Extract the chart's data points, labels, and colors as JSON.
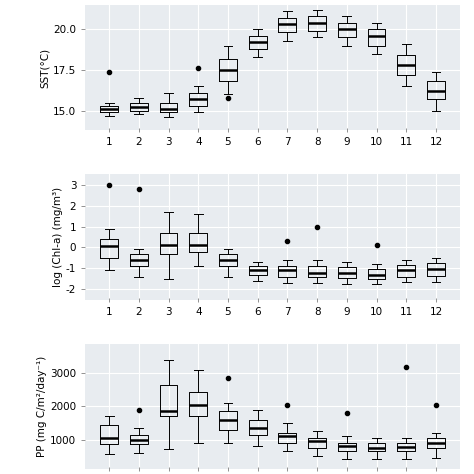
{
  "background_color": "#e8ecf0",
  "fig_background": "#ffffff",
  "sst": {
    "ylabel": "SST(°C)",
    "ylim": [
      13.8,
      21.5
    ],
    "yticks": [
      15.0,
      17.5,
      20.0
    ],
    "ytick_labels": [
      "15.0",
      "17.5",
      "20.0"
    ],
    "boxes": [
      {
        "month": 1,
        "q1": 14.9,
        "median": 15.1,
        "q3": 15.3,
        "whislo": 14.7,
        "whishi": 15.5,
        "fliers": [
          17.4
        ]
      },
      {
        "month": 2,
        "q1": 15.0,
        "median": 15.2,
        "q3": 15.5,
        "whislo": 14.8,
        "whishi": 15.8,
        "fliers": []
      },
      {
        "month": 3,
        "q1": 14.9,
        "median": 15.1,
        "q3": 15.5,
        "whislo": 14.6,
        "whishi": 16.1,
        "fliers": []
      },
      {
        "month": 4,
        "q1": 15.3,
        "median": 15.7,
        "q3": 16.1,
        "whislo": 14.9,
        "whishi": 16.5,
        "fliers": [
          17.6
        ]
      },
      {
        "month": 5,
        "q1": 16.8,
        "median": 17.5,
        "q3": 18.2,
        "whislo": 16.0,
        "whishi": 19.0,
        "fliers": [
          15.8
        ]
      },
      {
        "month": 6,
        "q1": 18.8,
        "median": 19.2,
        "q3": 19.6,
        "whislo": 18.3,
        "whishi": 20.0,
        "fliers": []
      },
      {
        "month": 7,
        "q1": 19.8,
        "median": 20.3,
        "q3": 20.7,
        "whislo": 19.3,
        "whishi": 21.1,
        "fliers": []
      },
      {
        "month": 8,
        "q1": 19.9,
        "median": 20.4,
        "q3": 20.8,
        "whislo": 19.5,
        "whishi": 21.2,
        "fliers": []
      },
      {
        "month": 9,
        "q1": 19.5,
        "median": 20.0,
        "q3": 20.4,
        "whislo": 19.0,
        "whishi": 20.8,
        "fliers": []
      },
      {
        "month": 10,
        "q1": 19.0,
        "median": 19.6,
        "q3": 20.0,
        "whislo": 18.5,
        "whishi": 20.4,
        "fliers": []
      },
      {
        "month": 11,
        "q1": 17.2,
        "median": 17.8,
        "q3": 18.4,
        "whislo": 16.5,
        "whishi": 19.1,
        "fliers": []
      },
      {
        "month": 12,
        "q1": 15.7,
        "median": 16.2,
        "q3": 16.8,
        "whislo": 15.0,
        "whishi": 17.4,
        "fliers": []
      }
    ]
  },
  "chla": {
    "ylabel": "log (Chl-a) (mg/m³)",
    "ylim": [
      -2.5,
      3.5
    ],
    "yticks": [
      -2,
      -1,
      0,
      1,
      2,
      3
    ],
    "ytick_labels": [
      "-2",
      "-1",
      "0",
      "1",
      "2",
      "3"
    ],
    "boxes": [
      {
        "month": 1,
        "q1": -0.5,
        "median": 0.05,
        "q3": 0.4,
        "whislo": -1.1,
        "whishi": 0.9,
        "fliers": [
          3.0
        ]
      },
      {
        "month": 2,
        "q1": -0.9,
        "median": -0.6,
        "q3": -0.3,
        "whislo": -1.4,
        "whishi": -0.05,
        "fliers": [
          2.8
        ]
      },
      {
        "month": 3,
        "q1": -0.3,
        "median": 0.1,
        "q3": 0.7,
        "whislo": -1.5,
        "whishi": 1.7,
        "fliers": []
      },
      {
        "month": 4,
        "q1": -0.2,
        "median": 0.1,
        "q3": 0.7,
        "whislo": -0.9,
        "whishi": 1.6,
        "fliers": []
      },
      {
        "month": 5,
        "q1": -0.9,
        "median": -0.6,
        "q3": -0.3,
        "whislo": -1.4,
        "whishi": -0.05,
        "fliers": []
      },
      {
        "month": 6,
        "q1": -1.3,
        "median": -1.1,
        "q3": -0.9,
        "whislo": -1.6,
        "whishi": -0.7,
        "fliers": []
      },
      {
        "month": 7,
        "q1": -1.4,
        "median": -1.1,
        "q3": -0.9,
        "whislo": -1.7,
        "whishi": -0.6,
        "fliers": [
          0.3
        ]
      },
      {
        "month": 8,
        "q1": -1.4,
        "median": -1.2,
        "q3": -0.9,
        "whislo": -1.7,
        "whishi": -0.6,
        "fliers": [
          1.0
        ]
      },
      {
        "month": 9,
        "q1": -1.45,
        "median": -1.2,
        "q3": -0.95,
        "whislo": -1.75,
        "whishi": -0.7,
        "fliers": []
      },
      {
        "month": 10,
        "q1": -1.5,
        "median": -1.3,
        "q3": -1.05,
        "whislo": -1.75,
        "whishi": -0.8,
        "fliers": [
          0.1
        ]
      },
      {
        "month": 11,
        "q1": -1.4,
        "median": -1.1,
        "q3": -0.85,
        "whislo": -1.65,
        "whishi": -0.6,
        "fliers": []
      },
      {
        "month": 12,
        "q1": -1.35,
        "median": -1.05,
        "q3": -0.75,
        "whislo": -1.65,
        "whishi": -0.5,
        "fliers": []
      }
    ]
  },
  "pp": {
    "ylabel": "PP (mg C/m²/day⁻¹)",
    "ylim": [
      100,
      3900
    ],
    "yticks": [
      1000,
      2000,
      3000
    ],
    "ytick_labels": [
      "1000",
      "2000",
      "3000"
    ],
    "boxes": [
      {
        "month": 1,
        "q1": 850,
        "median": 1050,
        "q3": 1450,
        "whislo": 550,
        "whishi": 1700,
        "fliers": []
      },
      {
        "month": 2,
        "q1": 850,
        "median": 1000,
        "q3": 1150,
        "whislo": 600,
        "whishi": 1350,
        "fliers": [
          1900
        ]
      },
      {
        "month": 3,
        "q1": 1700,
        "median": 1850,
        "q3": 2650,
        "whislo": 700,
        "whishi": 3400,
        "fliers": []
      },
      {
        "month": 4,
        "q1": 1700,
        "median": 2050,
        "q3": 2450,
        "whislo": 900,
        "whishi": 3100,
        "fliers": []
      },
      {
        "month": 5,
        "q1": 1300,
        "median": 1600,
        "q3": 1850,
        "whislo": 900,
        "whishi": 2100,
        "fliers": [
          2850
        ]
      },
      {
        "month": 6,
        "q1": 1150,
        "median": 1350,
        "q3": 1600,
        "whislo": 800,
        "whishi": 1900,
        "fliers": []
      },
      {
        "month": 7,
        "q1": 900,
        "median": 1100,
        "q3": 1200,
        "whislo": 650,
        "whishi": 1500,
        "fliers": [
          2050
        ]
      },
      {
        "month": 8,
        "q1": 750,
        "median": 950,
        "q3": 1050,
        "whislo": 500,
        "whishi": 1250,
        "fliers": []
      },
      {
        "month": 9,
        "q1": 650,
        "median": 800,
        "q3": 900,
        "whislo": 400,
        "whishi": 1100,
        "fliers": [
          1800
        ]
      },
      {
        "month": 10,
        "q1": 650,
        "median": 750,
        "q3": 900,
        "whislo": 400,
        "whishi": 1050,
        "fliers": []
      },
      {
        "month": 11,
        "q1": 650,
        "median": 780,
        "q3": 900,
        "whislo": 400,
        "whishi": 1050,
        "fliers": [
          3200
        ]
      },
      {
        "month": 12,
        "q1": 750,
        "median": 900,
        "q3": 1050,
        "whislo": 450,
        "whishi": 1200,
        "fliers": [
          2050
        ]
      }
    ]
  }
}
